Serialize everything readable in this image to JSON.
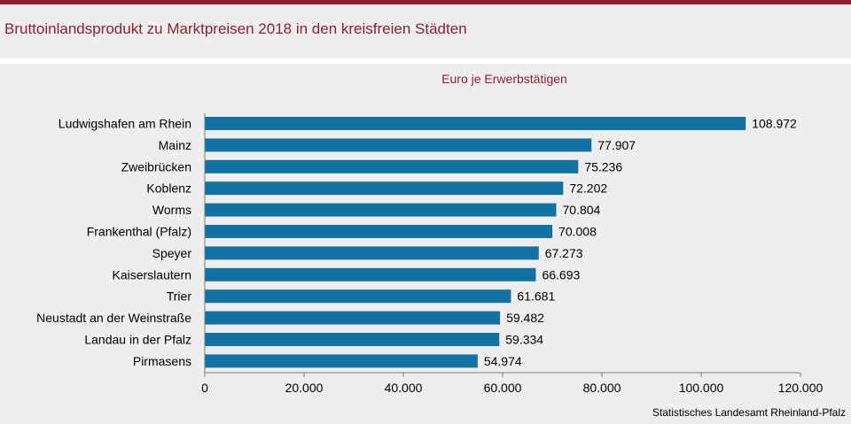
{
  "title": "Bruttoinlandsprodukt zu Marktpreisen 2018 in den kreisfreien Städten",
  "source": "Statistisches Landesamt  Rheinland-Pfalz",
  "colors": {
    "bar": "#1272a4",
    "accent": "#8e1f35",
    "background": "#edeeed"
  },
  "chart_data": {
    "type": "bar",
    "orientation": "horizontal",
    "subtitle": "Euro je Erwerbstätigen",
    "categories": [
      "Ludwigshafen am Rhein",
      "Mainz",
      "Zweibrücken",
      "Koblenz",
      "Worms",
      "Frankenthal (Pfalz)",
      "Speyer",
      "Kaiserslautern",
      "Trier",
      "Neustadt an der Weinstraße",
      "Landau in der Pfalz",
      "Pirmasens"
    ],
    "values": [
      108972,
      77907,
      75236,
      72202,
      70804,
      70008,
      67273,
      66693,
      61681,
      59482,
      59334,
      54974
    ],
    "value_labels": [
      "108.972",
      "77.907",
      "75.236",
      "72.202",
      "70.804",
      "70.008",
      "67.273",
      "66.693",
      "61.681",
      "59.482",
      "59.334",
      "54.974"
    ],
    "xlim": [
      0,
      120000
    ],
    "ticks": [
      0,
      20000,
      40000,
      60000,
      80000,
      100000,
      120000
    ],
    "tick_labels": [
      "0",
      "20.000",
      "40.000",
      "60.000",
      "80.000",
      "100.000",
      "120.000"
    ],
    "grid": false,
    "legend": "none"
  }
}
